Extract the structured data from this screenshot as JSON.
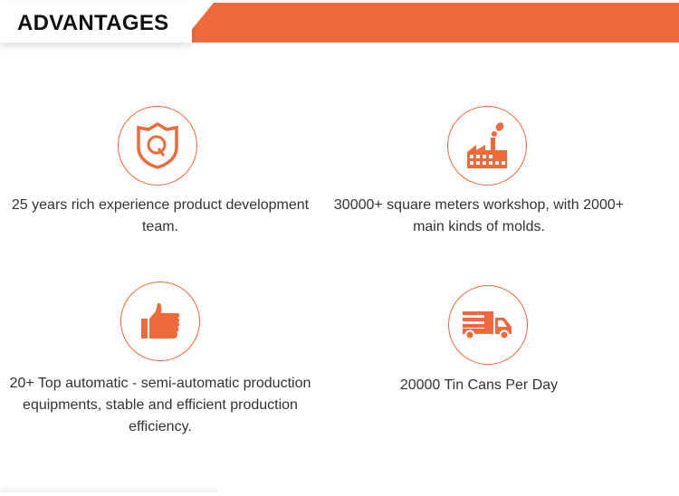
{
  "header": {
    "title": "ADVANTAGES",
    "accent": "#ee6a3a"
  },
  "items": [
    {
      "icon": "shield-q-icon",
      "text": "25 years rich experience product development team."
    },
    {
      "icon": "factory-icon",
      "text": "30000+ square meters workshop, with 2000+ main kinds of molds."
    },
    {
      "icon": "thumbs-up-icon",
      "text": "20+ Top automatic - semi-automatic production equipments, stable and efficient production efficiency."
    },
    {
      "icon": "truck-icon",
      "text": "20000 Tin Cans Per Day"
    }
  ]
}
